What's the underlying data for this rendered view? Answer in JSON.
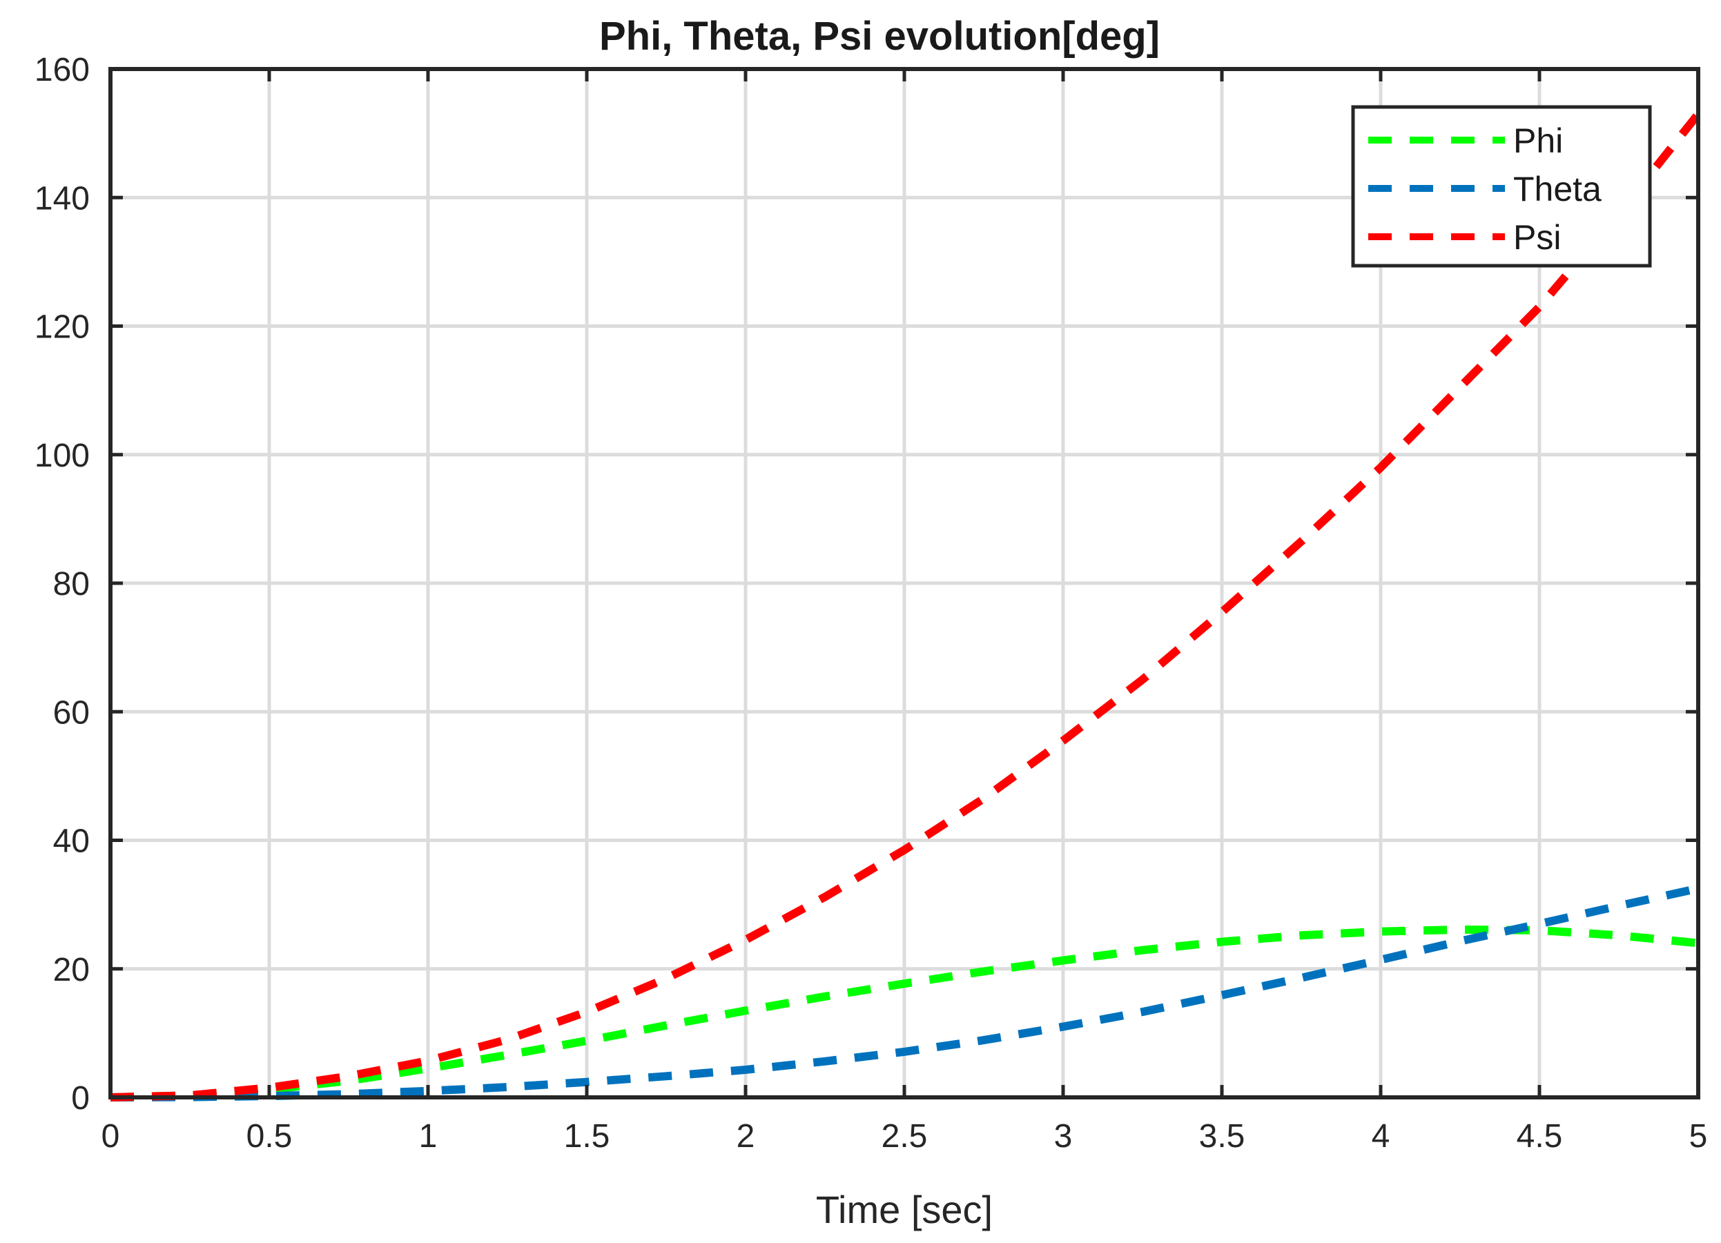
{
  "chart_data": {
    "type": "line",
    "title": "Phi, Theta, Psi evolution[deg]",
    "xlabel": "Time [sec]",
    "ylabel": "",
    "xlim": [
      0,
      5
    ],
    "ylim": [
      0,
      160
    ],
    "xticks": [
      0,
      0.5,
      1,
      1.5,
      2,
      2.5,
      3,
      3.5,
      4,
      4.5,
      5
    ],
    "xtick_labels": [
      "0",
      "0.5",
      "1",
      "1.5",
      "2",
      "2.5",
      "3",
      "3.5",
      "4",
      "4.5",
      "5"
    ],
    "yticks": [
      0,
      20,
      40,
      60,
      80,
      100,
      120,
      140,
      160
    ],
    "ytick_labels": [
      "0",
      "20",
      "40",
      "60",
      "80",
      "100",
      "120",
      "140",
      "160"
    ],
    "grid": true,
    "legend_position": "top-right",
    "series": [
      {
        "name": "Phi",
        "color": "#00ff00",
        "style": "dashed",
        "x": [
          0,
          0.25,
          0.5,
          0.75,
          1,
          1.25,
          1.5,
          1.75,
          2,
          2.25,
          2.5,
          2.75,
          3,
          3.25,
          3.5,
          3.75,
          4,
          4.25,
          4.5,
          4.75,
          5
        ],
        "y": [
          0,
          0.3,
          1.2,
          2.6,
          4.5,
          6.6,
          8.8,
          11.2,
          13.5,
          15.7,
          17.7,
          19.6,
          21.3,
          22.9,
          24.2,
          25.2,
          25.8,
          26.1,
          26.0,
          25.2,
          24.0
        ]
      },
      {
        "name": "Theta",
        "color": "#0072bd",
        "style": "dashed",
        "x": [
          0,
          0.25,
          0.5,
          0.75,
          1,
          1.25,
          1.5,
          1.75,
          2,
          2.25,
          2.5,
          2.75,
          3,
          3.25,
          3.5,
          3.75,
          4,
          4.25,
          4.5,
          4.75,
          5
        ],
        "y": [
          0,
          0.05,
          0.2,
          0.5,
          1.0,
          1.6,
          2.4,
          3.3,
          4.3,
          5.6,
          7.1,
          8.9,
          11.0,
          13.3,
          15.9,
          18.6,
          21.4,
          24.3,
          27.0,
          29.8,
          32.5
        ]
      },
      {
        "name": "Psi",
        "color": "#ff0000",
        "style": "dashed",
        "x": [
          0,
          0.25,
          0.5,
          0.75,
          1,
          1.25,
          1.5,
          1.75,
          2,
          2.25,
          2.5,
          2.75,
          3,
          3.25,
          3.5,
          3.75,
          4,
          4.25,
          4.5,
          4.75,
          5
        ],
        "y": [
          0,
          0.3,
          1.5,
          3.3,
          5.7,
          9.0,
          13.3,
          18.5,
          24.5,
          31.2,
          38.5,
          46.5,
          55.5,
          65.0,
          75.5,
          86.5,
          98.0,
          110.5,
          123.0,
          137.5,
          153.0
        ]
      }
    ]
  }
}
